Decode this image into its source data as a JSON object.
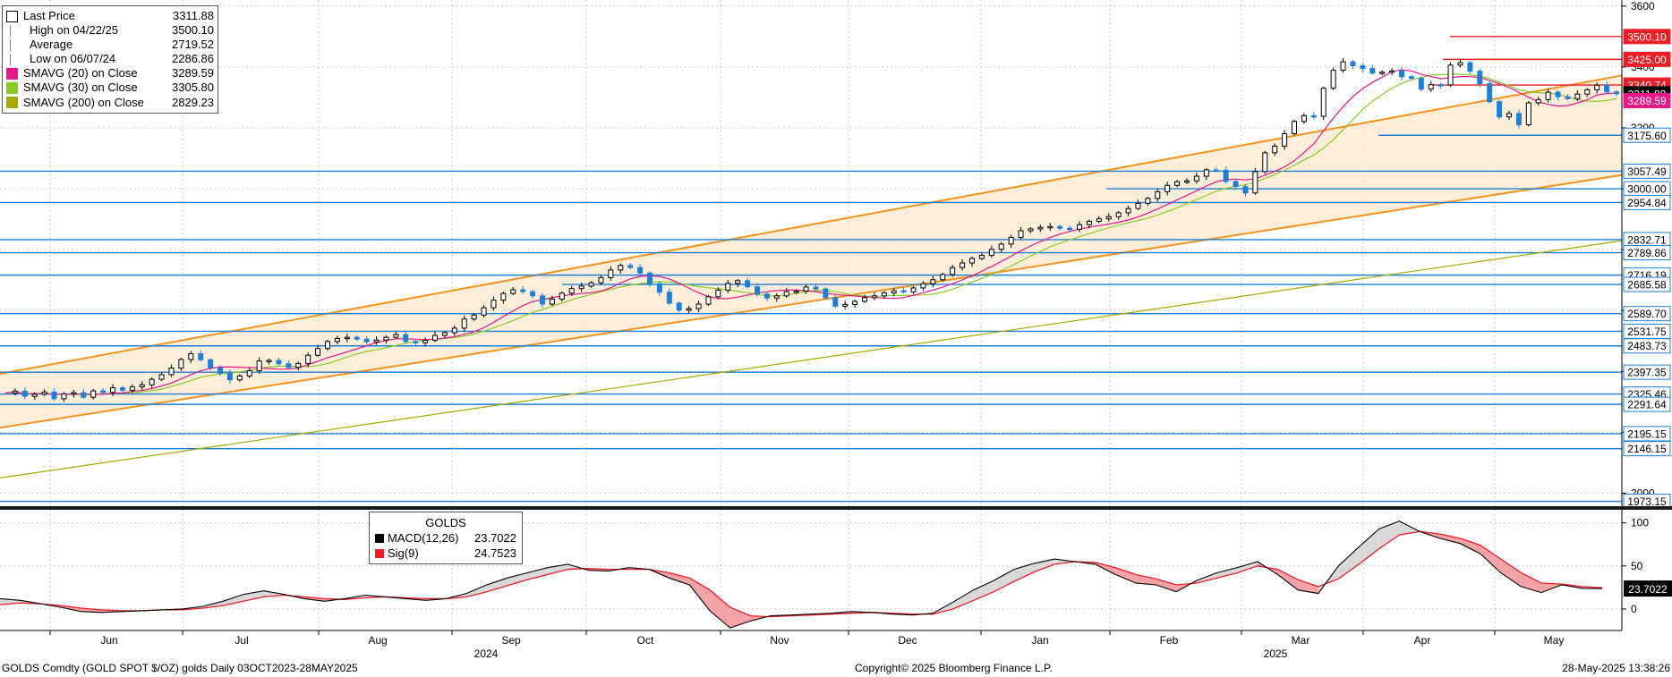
{
  "chart_data": [
    {
      "type": "candlestick",
      "title": "GOLDS Comdty (GOLD SPOT $/OZ) golds",
      "subtitle": "Daily 03OCT2023-28MAY2025",
      "ylim": [
        1960,
        3620
      ],
      "y_ticks": [
        3600,
        3400,
        3200,
        3000,
        2800,
        2600,
        2400,
        2200,
        2000
      ],
      "x_labels": [
        {
          "label": "Jun",
          "year": ""
        },
        {
          "label": "Jul",
          "year": ""
        },
        {
          "label": "Aug",
          "year": ""
        },
        {
          "label": "Sep",
          "year": "2024"
        },
        {
          "label": "Oct",
          "year": ""
        },
        {
          "label": "Nov",
          "year": ""
        },
        {
          "label": "Dec",
          "year": ""
        },
        {
          "label": "Jan",
          "year": ""
        },
        {
          "label": "Feb",
          "year": ""
        },
        {
          "label": "Mar",
          "year": "2025"
        },
        {
          "label": "Apr",
          "year": ""
        },
        {
          "label": "May",
          "year": ""
        }
      ],
      "legend": [
        {
          "label": "Last Price",
          "value": "3311.88",
          "color": "#000000",
          "symbol": "box"
        },
        {
          "label": "High on 04/22/25",
          "value": "3500.10",
          "color": "#888888",
          "symbol": "high"
        },
        {
          "label": "Average",
          "value": "2719.52",
          "color": "#888888",
          "symbol": "avg"
        },
        {
          "label": "Low on 06/07/24",
          "value": "2286.86",
          "color": "#888888",
          "symbol": "low"
        },
        {
          "label": "SMAVG (20)  on Close",
          "value": "3289.59",
          "color": "#e8178a",
          "symbol": "fill"
        },
        {
          "label": "SMAVG (30)  on Close",
          "value": "3305.80",
          "color": "#88cc22",
          "symbol": "fill"
        },
        {
          "label": "SMAVG (200)  on Close",
          "value": "2829.23",
          "color": "#a8a800",
          "symbol": "fill"
        }
      ],
      "level_tags": [
        {
          "value": 3500.1,
          "label": "3500.10",
          "color": "#ee1c25"
        },
        {
          "value": 3425.0,
          "label": "3425.00",
          "color": "#ee1c25"
        },
        {
          "value": 3340.74,
          "label": "3340.74",
          "color": "#ee1c25"
        },
        {
          "value": 3311.88,
          "label": "3311.88",
          "color": "#000000"
        },
        {
          "value": 3289.59,
          "label": "3289.59",
          "color": "#e8178a"
        },
        {
          "value": 3175.6,
          "label": "3175.60",
          "color": "#1f7fd8"
        },
        {
          "value": 3057.49,
          "label": "3057.49",
          "color": "#1f7fd8"
        },
        {
          "value": 3000.0,
          "label": "3000.00",
          "color": "#1f7fd8"
        },
        {
          "value": 2954.84,
          "label": "2954.84",
          "color": "#1f7fd8"
        },
        {
          "value": 2832.71,
          "label": "2832.71",
          "color": "#1f7fd8"
        },
        {
          "value": 2789.86,
          "label": "2789.86",
          "color": "#1f7fd8"
        },
        {
          "value": 2716.19,
          "label": "2716.19",
          "color": "#1f7fd8"
        },
        {
          "value": 2685.58,
          "label": "2685.58",
          "color": "#1f7fd8"
        },
        {
          "value": 2589.7,
          "label": "2589.70",
          "color": "#1f7fd8"
        },
        {
          "value": 2531.75,
          "label": "2531.75",
          "color": "#1f7fd8"
        },
        {
          "value": 2483.73,
          "label": "2483.73",
          "color": "#1f7fd8"
        },
        {
          "value": 2397.35,
          "label": "2397.35",
          "color": "#1f7fd8"
        },
        {
          "value": 2325.46,
          "label": "2325.46",
          "color": "#1f7fd8"
        },
        {
          "value": 2291.64,
          "label": "2291.64",
          "color": "#1f7fd8"
        },
        {
          "value": 2195.15,
          "label": "2195.15",
          "color": "#1f7fd8"
        },
        {
          "value": 2146.15,
          "label": "2146.15",
          "color": "#1f7fd8"
        },
        {
          "value": 1973.15,
          "label": "1973.15",
          "color": "#1f7fd8"
        }
      ],
      "colors": {
        "up": "#000000",
        "down": "#1f7fd8",
        "channel": "#f5941d",
        "channel_fill": "#fdebd3",
        "sma20": "#e8178a",
        "sma30": "#88cc22",
        "sma200": "#a8a800",
        "grid": "#c8c8c8"
      }
    },
    {
      "type": "line",
      "title": "GOLDS",
      "ylim": [
        -25,
        110
      ],
      "y_ticks": [
        100,
        50,
        0
      ],
      "series": [
        {
          "name": "MACD(12,26)",
          "value_label": "23.7022",
          "color": "#000000",
          "values": [
            12,
            10,
            6,
            2,
            -3,
            -4,
            -3,
            -2,
            -1,
            0,
            3,
            9,
            17,
            21,
            17,
            12,
            9,
            12,
            16,
            14,
            12,
            10,
            12,
            18,
            28,
            36,
            42,
            48,
            52,
            45,
            44,
            48,
            46,
            36,
            28,
            -2,
            -22,
            -14,
            -8,
            -7,
            -6,
            -5,
            -3,
            -4,
            -6,
            -7,
            -5,
            8,
            22,
            33,
            46,
            53,
            58,
            55,
            52,
            40,
            30,
            28,
            20,
            33,
            42,
            48,
            55,
            40,
            22,
            18,
            50,
            72,
            93,
            102,
            90,
            82,
            76,
            64,
            42,
            26,
            19,
            28,
            24,
            23.7
          ]
        },
        {
          "name": "Sig(9)",
          "value_label": "24.7523",
          "color": "#ee1c25",
          "values": [
            5,
            7,
            6,
            4,
            1,
            -1,
            -2,
            -2,
            -1,
            -1,
            1,
            4,
            9,
            14,
            16,
            14,
            12,
            11,
            13,
            14,
            13,
            12,
            12,
            14,
            20,
            27,
            34,
            40,
            46,
            47,
            46,
            46,
            46,
            42,
            36,
            22,
            2,
            -8,
            -9,
            -8,
            -7,
            -6,
            -5,
            -4,
            -5,
            -6,
            -6,
            0,
            10,
            20,
            32,
            43,
            52,
            55,
            54,
            48,
            40,
            35,
            28,
            30,
            36,
            42,
            50,
            46,
            34,
            26,
            35,
            52,
            70,
            86,
            90,
            87,
            82,
            74,
            58,
            42,
            30,
            29,
            26,
            24.75
          ]
        }
      ],
      "tag": {
        "label": "23.7022",
        "value": 23.7022
      }
    }
  ],
  "footer": {
    "left": "GOLDS Comdty (GOLD SPOT $/OZ) golds  Daily 03OCT2023-28MAY2025",
    "center": "Copyright© 2025 Bloomberg Finance L.P.",
    "right": "28-May-2025 13:38:26"
  },
  "macd_legend": {
    "title": "GOLDS",
    "rows": [
      {
        "label": "MACD(12,26)",
        "value": "23.7022",
        "color": "#000000"
      },
      {
        "label": "Sig(9)",
        "value": "24.7523",
        "color": "#ee1c25"
      }
    ]
  },
  "price_series": [
    2329,
    2335,
    2318,
    2325,
    2332,
    2310,
    2326,
    2330,
    2315,
    2336,
    2331,
    2346,
    2338,
    2349,
    2356,
    2374,
    2389,
    2411,
    2439,
    2458,
    2438,
    2412,
    2394,
    2372,
    2385,
    2402,
    2434,
    2436,
    2425,
    2413,
    2426,
    2453,
    2475,
    2498,
    2508,
    2512,
    2506,
    2497,
    2503,
    2512,
    2521,
    2498,
    2494,
    2502,
    2518,
    2527,
    2542,
    2572,
    2585,
    2609,
    2634,
    2656,
    2668,
    2662,
    2648,
    2621,
    2637,
    2657,
    2672,
    2680,
    2691,
    2708,
    2733,
    2748,
    2741,
    2723,
    2688,
    2660,
    2624,
    2601,
    2606,
    2621,
    2645,
    2667,
    2689,
    2698,
    2678,
    2654,
    2641,
    2648,
    2662,
    2664,
    2677,
    2671,
    2642,
    2614,
    2620,
    2630,
    2642,
    2648,
    2658,
    2665,
    2661,
    2674,
    2688,
    2701,
    2718,
    2741,
    2756,
    2771,
    2781,
    2801,
    2818,
    2840,
    2862,
    2868,
    2873,
    2876,
    2870,
    2867,
    2882,
    2893,
    2901,
    2908,
    2921,
    2935,
    2952,
    2968,
    2990,
    3011,
    3023,
    3026,
    3041,
    3062,
    3061,
    3024,
    3007,
    2986,
    3056,
    3118,
    3140,
    3181,
    3221,
    3240,
    3238,
    3330,
    3389,
    3417,
    3404,
    3395,
    3380,
    3383,
    3387,
    3368,
    3363,
    3327,
    3342,
    3341,
    3406,
    3414,
    3386,
    3345,
    3286,
    3236,
    3247,
    3210,
    3282,
    3293,
    3317,
    3302,
    3296,
    3311,
    3325,
    3340,
    3318,
    3311.88
  ]
}
